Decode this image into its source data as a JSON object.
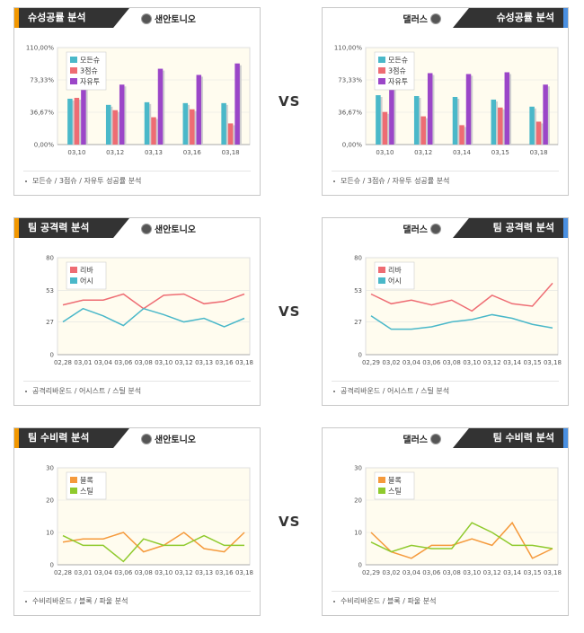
{
  "vs_label": "VS",
  "colors": {
    "tab": "#333333",
    "left_accent": "#f39800",
    "right_accent": "#4a90e2",
    "plot_bg": "#fffcef"
  },
  "panels": [
    {
      "id": "p1",
      "side": "left",
      "title": "슈성공률 분석",
      "team": "샌안토니오",
      "caption": "모든슈 / 3점슈 / 자유투 성공률 분석",
      "chart_data": {
        "type": "bar",
        "ylim": [
          0,
          110
        ],
        "ytick_labels": [
          "110,00%",
          "73,33%",
          "36,67%",
          "0,00%"
        ],
        "categories": [
          "03,10",
          "03,12",
          "03,13",
          "03,16",
          "03,18"
        ],
        "series": [
          {
            "name": "모든슈",
            "color": "#4ab8c9",
            "values": [
              52,
              45,
              48,
              47,
              47
            ]
          },
          {
            "name": "3점슈",
            "color": "#ee6c73",
            "values": [
              53,
              39,
              31,
              40,
              24
            ]
          },
          {
            "name": "자유투",
            "color": "#9b46c8",
            "values": [
              73,
              68,
              86,
              79,
              92
            ]
          }
        ]
      }
    },
    {
      "id": "p2",
      "side": "right",
      "title": "슈성공률 분석",
      "team": "댈러스",
      "caption": "모든슈 / 3점슈 / 자유투 성공률 분석",
      "chart_data": {
        "type": "bar",
        "ylim": [
          0,
          110
        ],
        "ytick_labels": [
          "110,00%",
          "73,33%",
          "36,67%",
          "0,00%"
        ],
        "categories": [
          "03,10",
          "03,12",
          "03,14",
          "03,15",
          "03,18"
        ],
        "series": [
          {
            "name": "모든슈",
            "color": "#4ab8c9",
            "values": [
              56,
              55,
              54,
              51,
              43
            ]
          },
          {
            "name": "3점슈",
            "color": "#ee6c73",
            "values": [
              37,
              32,
              22,
              42,
              26
            ]
          },
          {
            "name": "자유투",
            "color": "#9b46c8",
            "values": [
              85,
              81,
              80,
              82,
              68
            ]
          }
        ]
      }
    },
    {
      "id": "p3",
      "side": "left",
      "title": "팀 공격력 분석",
      "team": "샌안토니오",
      "caption": "공격리바운드 / 어시스트 / 스틸 분석",
      "chart_data": {
        "type": "line",
        "ylim": [
          0,
          80
        ],
        "yticks": [
          0,
          27,
          53,
          80
        ],
        "x": [
          "02,28",
          "03,01",
          "03,04",
          "03,06",
          "03,08",
          "03,10",
          "03,12",
          "03,13",
          "03,16",
          "03,18"
        ],
        "series": [
          {
            "name": "리바",
            "color": "#ee6c73",
            "values": [
              41,
              45,
              45,
              50,
              38,
              49,
              50,
              42,
              44,
              50
            ]
          },
          {
            "name": "어시",
            "color": "#4ab8c9",
            "values": [
              27,
              38,
              32,
              24,
              38,
              33,
              27,
              30,
              23,
              30
            ]
          }
        ]
      }
    },
    {
      "id": "p4",
      "side": "right",
      "title": "팀 공격력 분석",
      "team": "댈러스",
      "caption": "공격리바운드 / 어시스트 / 스틸 분석",
      "chart_data": {
        "type": "line",
        "ylim": [
          0,
          80
        ],
        "yticks": [
          0,
          27,
          53,
          80
        ],
        "x": [
          "02,29",
          "03,02",
          "03,04",
          "03,06",
          "03,08",
          "03,10",
          "03,12",
          "03,14",
          "03,15",
          "03,18"
        ],
        "series": [
          {
            "name": "리바",
            "color": "#ee6c73",
            "values": [
              50,
              42,
              45,
              41,
              45,
              36,
              49,
              42,
              40,
              59
            ]
          },
          {
            "name": "어시",
            "color": "#4ab8c9",
            "values": [
              32,
              21,
              21,
              23,
              27,
              29,
              33,
              30,
              25,
              22
            ]
          }
        ]
      }
    },
    {
      "id": "p5",
      "side": "left",
      "title": "팀 수비력 분석",
      "team": "샌안토니오",
      "caption": "수비리바운드 / 블록 / 파울 분석",
      "chart_data": {
        "type": "line",
        "ylim": [
          0,
          30
        ],
        "yticks": [
          0,
          10,
          20,
          30
        ],
        "x": [
          "02,28",
          "03,01",
          "03,04",
          "03,06",
          "03,08",
          "03,10",
          "03,12",
          "03,13",
          "03,16",
          "03,18"
        ],
        "series": [
          {
            "name": "블록",
            "color": "#f59a3c",
            "values": [
              7,
              8,
              8,
              10,
              4,
              6,
              10,
              5,
              4,
              10
            ]
          },
          {
            "name": "스틸",
            "color": "#8fca2d",
            "values": [
              9,
              6,
              6,
              1,
              8,
              6,
              6,
              9,
              6,
              6
            ]
          }
        ]
      }
    },
    {
      "id": "p6",
      "side": "right",
      "title": "팀 수비력 분석",
      "team": "댈러스",
      "caption": "수비리바운드 / 블록 / 파울 분석",
      "chart_data": {
        "type": "line",
        "ylim": [
          0,
          30
        ],
        "yticks": [
          0,
          10,
          20,
          30
        ],
        "x": [
          "02,29",
          "03,02",
          "03,04",
          "03,06",
          "03,08",
          "03,10",
          "03,12",
          "03,14",
          "03,15",
          "03,18"
        ],
        "series": [
          {
            "name": "블록",
            "color": "#f59a3c",
            "values": [
              10,
              4,
              2,
              6,
              6,
              8,
              6,
              13,
              2,
              5
            ]
          },
          {
            "name": "스틸",
            "color": "#8fca2d",
            "values": [
              7,
              4,
              6,
              5,
              5,
              13,
              10,
              6,
              6,
              5
            ]
          }
        ]
      }
    }
  ]
}
